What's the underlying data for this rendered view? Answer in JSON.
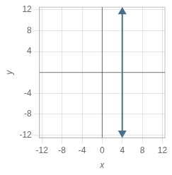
{
  "chart_data": {
    "type": "line",
    "x": [
      4,
      4
    ],
    "values": [
      -11.6,
      11.6
    ],
    "color": "#4a708b",
    "marker": "arrow",
    "xlabel": "x",
    "ylabel": "y",
    "xlim": [
      -12.5,
      12.5
    ],
    "ylim": [
      -12.5,
      12.5
    ],
    "xticks": [
      -12,
      -8,
      -4,
      0,
      4,
      8,
      12
    ],
    "yticks": [
      -12,
      -8,
      -4,
      4,
      8,
      12
    ],
    "grid": true
  }
}
